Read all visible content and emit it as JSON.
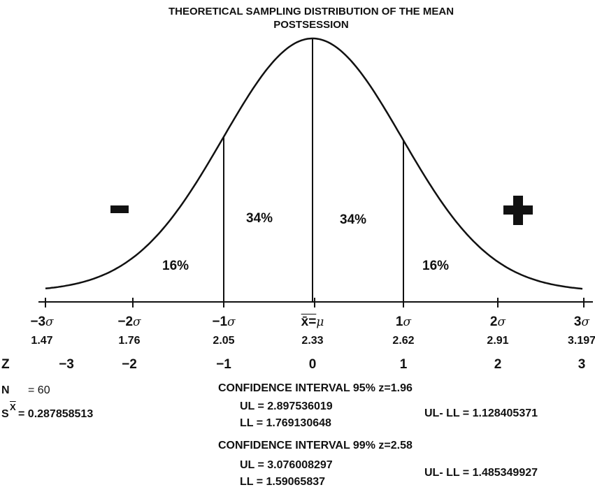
{
  "title": [
    "THEORETICAL SAMPLING DISTRIBUTION OF THE MEAN",
    "POSTSESSION"
  ],
  "chart_data": {
    "type": "normal-curve",
    "title": "THEORETICAL SAMPLING DISTRIBUTION OF THE MEAN POSTSESSION",
    "sigma_labels": [
      "−3",
      "−2",
      "−1",
      "x̄=",
      "1",
      "2",
      "3"
    ],
    "sigma_symbol": "σ",
    "mu_symbol": "μ",
    "values": [
      "1.47",
      "1.76",
      "2.05",
      "2.33",
      "2.62",
      "2.91",
      "3.197"
    ],
    "z_label": "Z",
    "z_values": [
      "−3",
      "−2",
      "−1",
      "0",
      "1",
      "2",
      "3"
    ],
    "areas": [
      "16%",
      "34%",
      "34%",
      "16%"
    ],
    "minus_sign": "-",
    "plus_sign": "+"
  },
  "stats": {
    "n_label": "N",
    "n_value": "= 60",
    "se_label": "S",
    "se_bar": "X",
    "se_value": "= 0.287858513"
  },
  "ci95": {
    "heading": "CONFIDENCE INTERVAL 95% z=1.96",
    "ul": "UL = 2.897536019",
    "ll": "LL = 1.769130648",
    "diff": "UL- LL =  1.128405371"
  },
  "ci99": {
    "heading": "CONFIDENCE INTERVAL 99% z=2.58",
    "ul": "UL = 3.076008297",
    "ll": "LL = 1.59065837",
    "diff": "UL- LL =  1.485349927"
  }
}
